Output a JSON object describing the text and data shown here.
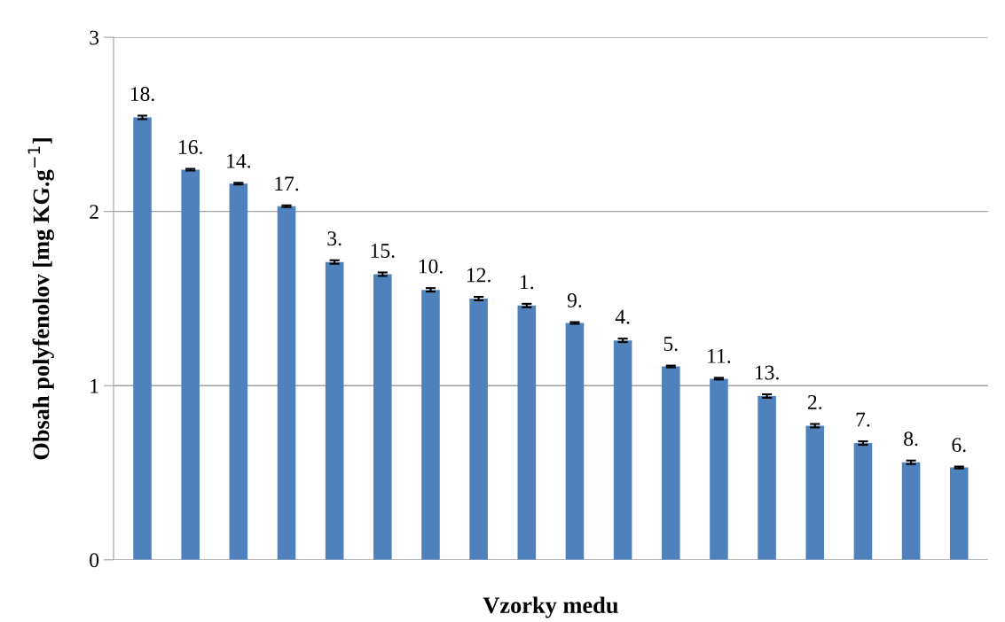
{
  "chart_data": {
    "type": "bar",
    "xlabel": "Vzorky medu",
    "ylabel": "Obsah polyfenolov [mg KG.g$^{−1}$]",
    "categories": [
      "18.",
      "16.",
      "14.",
      "17.",
      "3.",
      "15.",
      "10.",
      "12.",
      "1.",
      "9.",
      "4.",
      "5.",
      "11.",
      "13.",
      "2.",
      "7.",
      "8.",
      "6."
    ],
    "values": [
      2.54,
      2.24,
      2.16,
      2.03,
      1.71,
      1.64,
      1.55,
      1.5,
      1.46,
      1.36,
      1.26,
      1.11,
      1.04,
      0.94,
      0.77,
      0.67,
      0.56,
      0.53
    ],
    "errors": [
      0.01,
      0.005,
      0.005,
      0.005,
      0.01,
      0.01,
      0.01,
      0.01,
      0.01,
      0.005,
      0.01,
      0.005,
      0.005,
      0.01,
      0.01,
      0.01,
      0.01,
      0.005
    ],
    "color": "#4f81bd",
    "ylim": [
      0,
      3
    ],
    "yticks": [
      0,
      1,
      2,
      3
    ],
    "grid": "y",
    "tick_labels": "y"
  }
}
